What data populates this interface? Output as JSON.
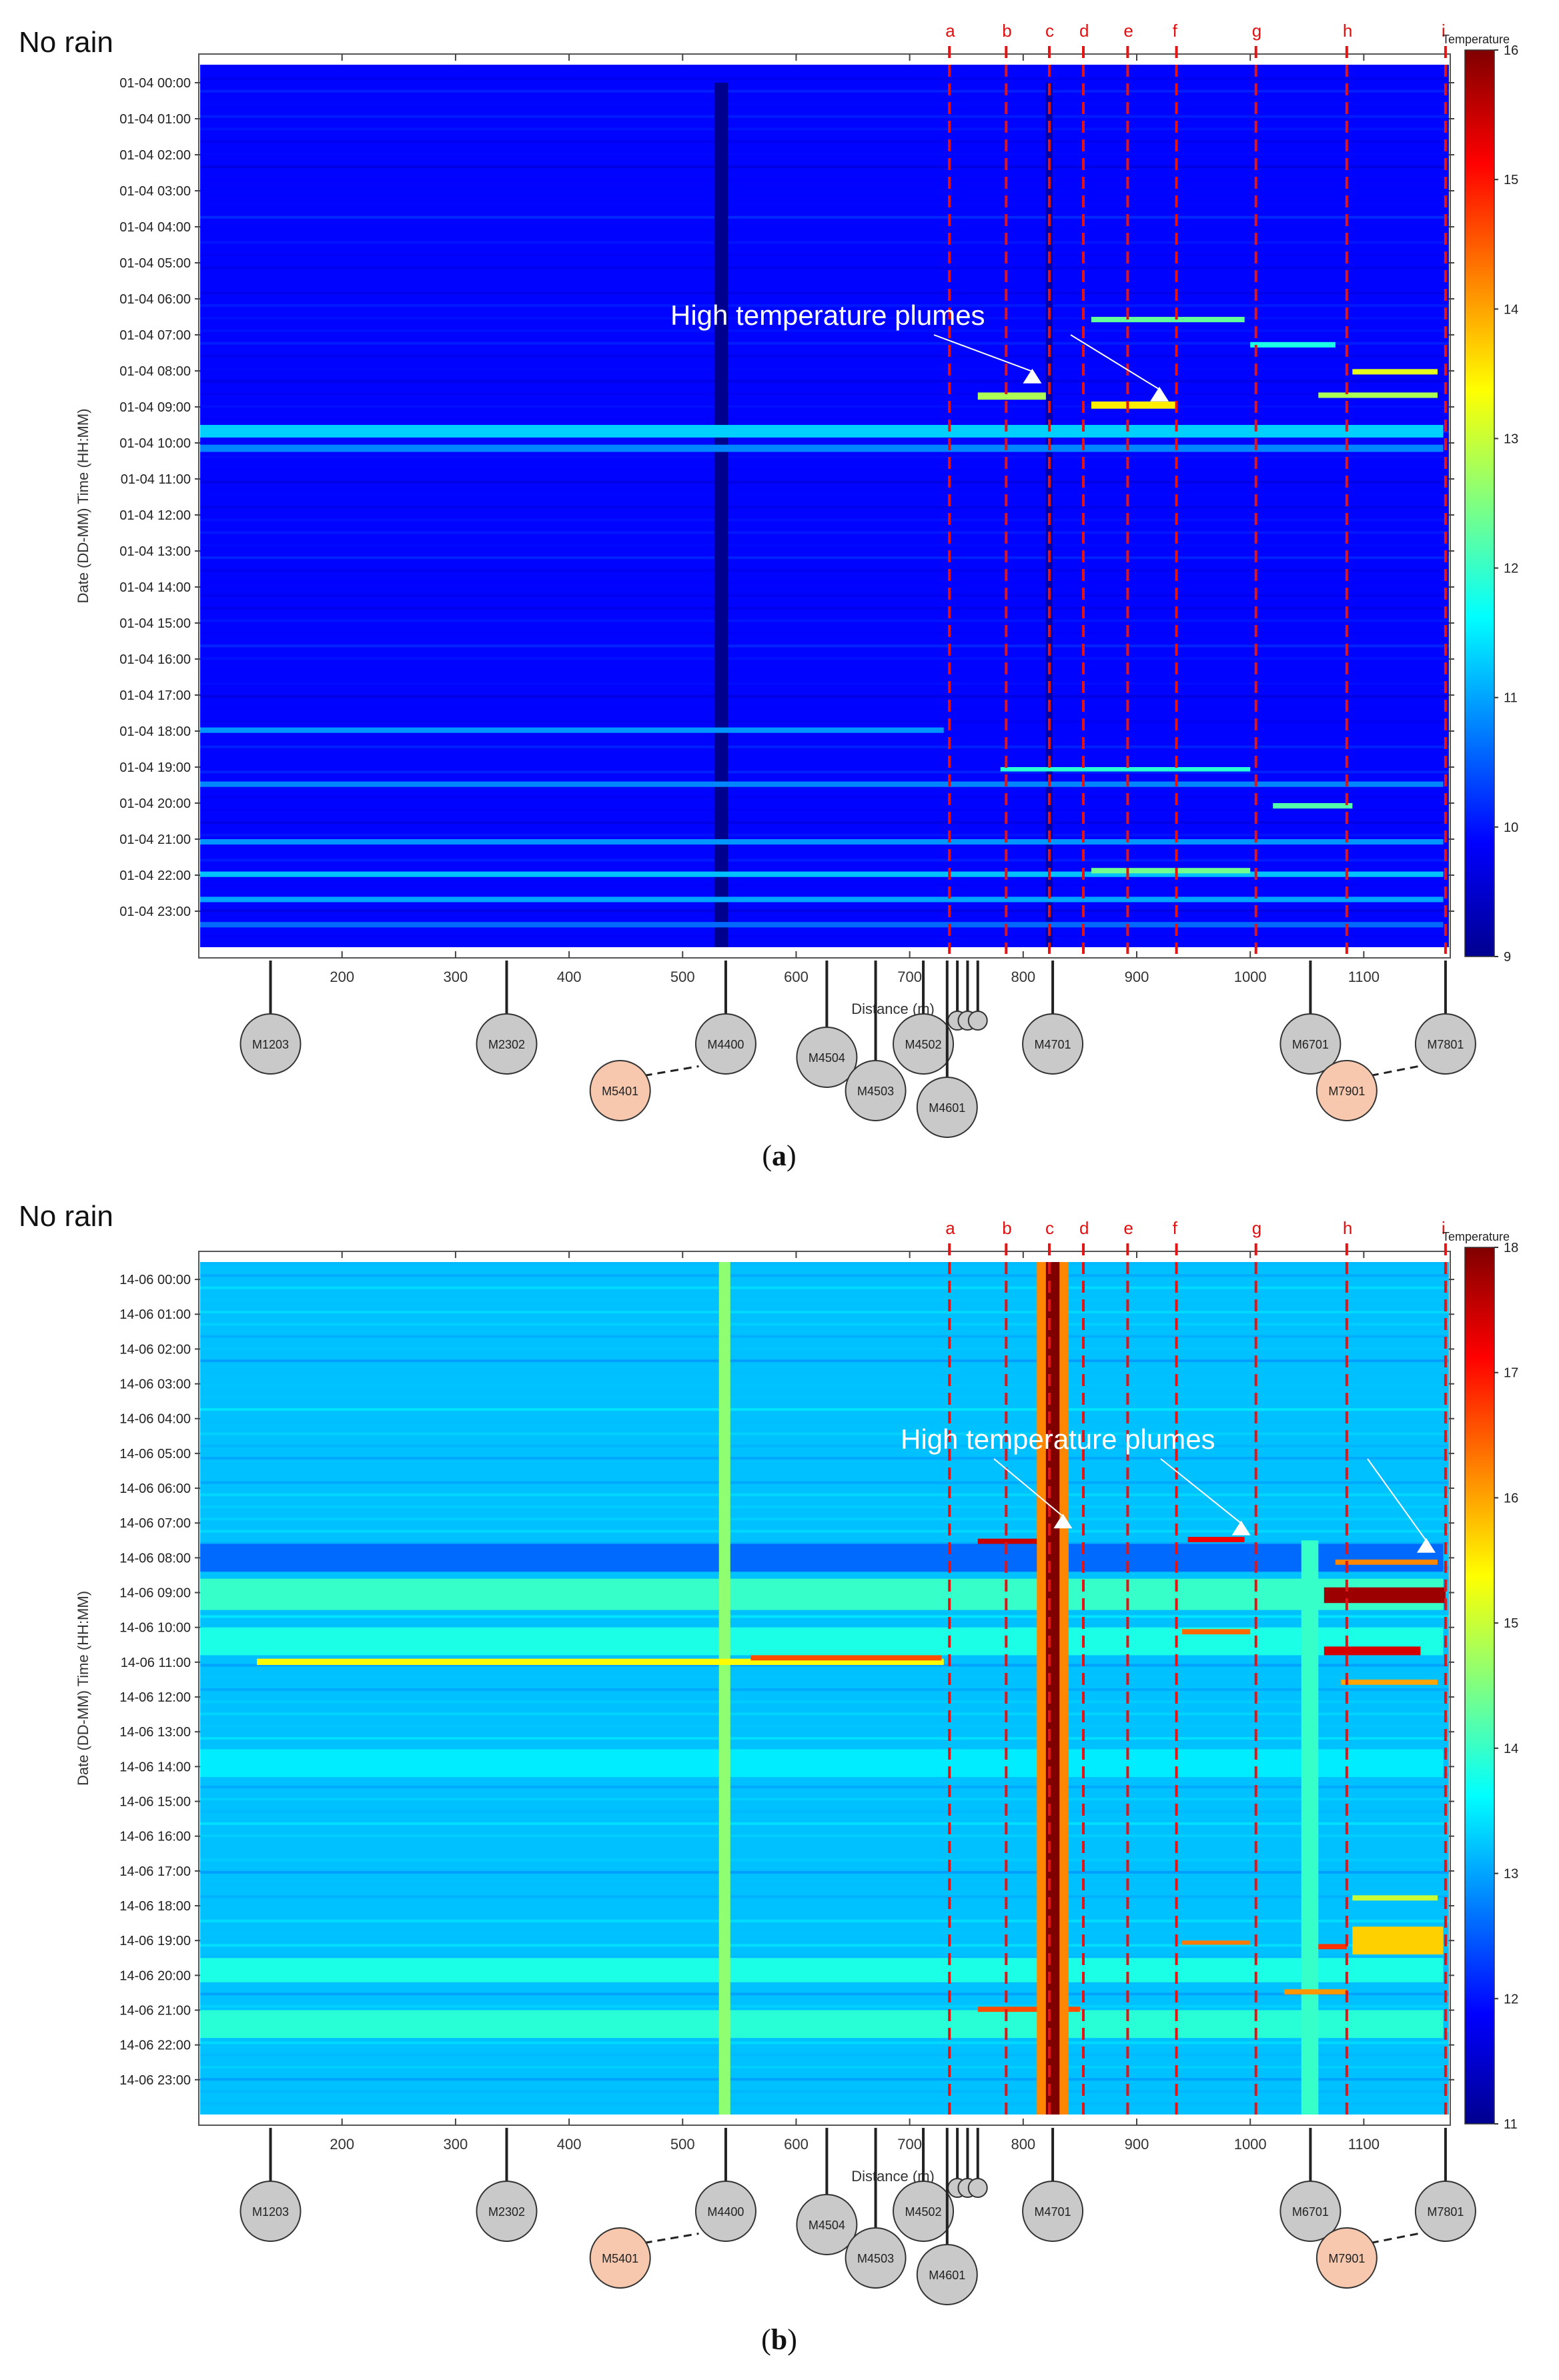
{
  "colors": {
    "manhole_grey": "#c9c9c9",
    "manhole_orange": "#f7c8ad",
    "dashed_line": "#e41414",
    "colormap": [
      "#00008f",
      "#0000ff",
      "#0080ff",
      "#00ffff",
      "#80ff80",
      "#ffff00",
      "#ff8000",
      "#ff0000",
      "#800000"
    ]
  },
  "chart_data": [
    {
      "type": "heatmap",
      "panel_title": "No rain",
      "caption_prefix": "(",
      "caption_letter": "a",
      "caption_suffix": ")",
      "xlabel": "Distance (m)",
      "ylabel": "Date (DD-MM) Time (HH:MM)",
      "xlim": [
        75,
        1175
      ],
      "x_ticks": [
        200,
        300,
        400,
        500,
        600,
        700,
        800,
        900,
        1000,
        1100
      ],
      "y_tick_labels": [
        "01-04 00:00",
        "01-04 01:00",
        "01-04 02:00",
        "01-04 03:00",
        "01-04 04:00",
        "01-04 05:00",
        "01-04 06:00",
        "01-04 07:00",
        "01-04 08:00",
        "01-04 09:00",
        "01-04 10:00",
        "01-04 11:00",
        "01-04 12:00",
        "01-04 13:00",
        "01-04 14:00",
        "01-04 15:00",
        "01-04 16:00",
        "01-04 17:00",
        "01-04 18:00",
        "01-04 19:00",
        "01-04 20:00",
        "01-04 21:00",
        "01-04 22:00",
        "01-04 23:00"
      ],
      "ylim_hours": [
        -0.5,
        24
      ],
      "colorbar": {
        "title": "Temperature",
        "min": 9,
        "max": 16,
        "ticks": [
          9,
          10,
          11,
          12,
          13,
          14,
          15,
          16
        ]
      },
      "background_temp": 9.9,
      "annotation": {
        "text": "High temperature plumes",
        "arrow_targets": [
          {
            "x": 808,
            "h": 8.2
          },
          {
            "x": 920,
            "h": 8.7
          }
        ]
      },
      "vertical_lines": [
        {
          "label": "a",
          "x": 735
        },
        {
          "label": "b",
          "x": 785
        },
        {
          "label": "c",
          "x": 823
        },
        {
          "label": "d",
          "x": 853
        },
        {
          "label": "e",
          "x": 892
        },
        {
          "label": "f",
          "x": 935
        },
        {
          "label": "g",
          "x": 1005
        },
        {
          "label": "h",
          "x": 1085
        },
        {
          "label": "i",
          "x": 1172
        }
      ],
      "features": [
        {
          "x0": 528,
          "x1": 540,
          "h0": 0,
          "h1": 24,
          "t": 9.0
        },
        {
          "x0": 820,
          "x1": 826,
          "h0": 0,
          "h1": 24,
          "t": 9.2
        },
        {
          "x0": 75,
          "x1": 1170,
          "h0": 9.5,
          "h1": 9.85,
          "t": 11.3
        },
        {
          "x0": 75,
          "x1": 1170,
          "h0": 10.05,
          "h1": 10.25,
          "t": 10.8
        },
        {
          "x0": 760,
          "x1": 820,
          "h0": 8.6,
          "h1": 8.8,
          "t": 12.8
        },
        {
          "x0": 860,
          "x1": 935,
          "h0": 8.85,
          "h1": 9.05,
          "t": 13.5
        },
        {
          "x0": 860,
          "x1": 995,
          "h0": 6.5,
          "h1": 6.65,
          "t": 12.3
        },
        {
          "x0": 1090,
          "x1": 1165,
          "h0": 7.95,
          "h1": 8.1,
          "t": 13.2
        },
        {
          "x0": 1060,
          "x1": 1165,
          "h0": 8.6,
          "h1": 8.75,
          "t": 12.8
        },
        {
          "x0": 1000,
          "x1": 1075,
          "h0": 7.2,
          "h1": 7.35,
          "t": 11.8
        },
        {
          "x0": 75,
          "x1": 730,
          "h0": 17.9,
          "h1": 18.05,
          "t": 10.9
        },
        {
          "x0": 75,
          "x1": 1170,
          "h0": 19.4,
          "h1": 19.55,
          "t": 10.8
        },
        {
          "x0": 780,
          "x1": 1000,
          "h0": 19.0,
          "h1": 19.12,
          "t": 11.9
        },
        {
          "x0": 1020,
          "x1": 1090,
          "h0": 20.0,
          "h1": 20.15,
          "t": 12.2
        },
        {
          "x0": 75,
          "x1": 1170,
          "h0": 21.0,
          "h1": 21.15,
          "t": 10.9
        },
        {
          "x0": 75,
          "x1": 1170,
          "h0": 21.9,
          "h1": 22.05,
          "t": 11.2
        },
        {
          "x0": 860,
          "x1": 1000,
          "h0": 21.8,
          "h1": 21.95,
          "t": 12.4
        },
        {
          "x0": 75,
          "x1": 1170,
          "h0": 22.6,
          "h1": 22.75,
          "t": 11.0
        },
        {
          "x0": 75,
          "x1": 1170,
          "h0": 23.3,
          "h1": 23.45,
          "t": 10.6
        }
      ],
      "manholes_row": [
        {
          "label": "M1203",
          "x": 137,
          "style": "grey",
          "tier": 0
        },
        {
          "label": "M2302",
          "x": 345,
          "style": "grey",
          "tier": 0
        },
        {
          "label": "M4400",
          "x": 538,
          "style": "grey",
          "tier": 0
        },
        {
          "label": "M4504",
          "x": 627,
          "style": "grey",
          "tier": 1
        },
        {
          "label": "M4503",
          "x": 670,
          "style": "grey",
          "tier": 2
        },
        {
          "label": "M4502",
          "x": 712,
          "style": "grey",
          "tier": 0
        },
        {
          "label": "M4601",
          "x": 733,
          "style": "grey",
          "tier": 3
        },
        {
          "label": "M4701",
          "x": 826,
          "style": "grey",
          "tier": 0
        },
        {
          "label": "M6701",
          "x": 1053,
          "style": "grey",
          "tier": 0
        },
        {
          "label": "M7801",
          "x": 1172,
          "style": "grey",
          "tier": 0
        }
      ],
      "manholes_offset": [
        {
          "label": "M5401",
          "x": 445,
          "link_to": 538
        },
        {
          "label": "M7901",
          "x": 1085,
          "link_to": 1172
        }
      ]
    },
    {
      "type": "heatmap",
      "panel_title": "No rain",
      "caption_prefix": "(",
      "caption_letter": "b",
      "caption_suffix": ")",
      "xlabel": "Distance (m)",
      "ylabel": "Date (DD-MM) Time (HH:MM)",
      "xlim": [
        75,
        1175
      ],
      "x_ticks": [
        200,
        300,
        400,
        500,
        600,
        700,
        800,
        900,
        1000,
        1100
      ],
      "y_tick_labels": [
        "14-06 00:00",
        "14-06 01:00",
        "14-06 02:00",
        "14-06 03:00",
        "14-06 04:00",
        "14-06 05:00",
        "14-06 06:00",
        "14-06 07:00",
        "14-06 08:00",
        "14-06 09:00",
        "14-06 10:00",
        "14-06 11:00",
        "14-06 12:00",
        "14-06 13:00",
        "14-06 14:00",
        "14-06 15:00",
        "14-06 16:00",
        "14-06 17:00",
        "14-06 18:00",
        "14-06 19:00",
        "14-06 20:00",
        "14-06 21:00",
        "14-06 22:00",
        "14-06 23:00"
      ],
      "ylim_hours": [
        -0.5,
        24
      ],
      "colorbar": {
        "title": "Temperature",
        "min": 11,
        "max": 18,
        "ticks": [
          11,
          12,
          13,
          14,
          15,
          16,
          17,
          18
        ]
      },
      "background_temp": 13.2,
      "annotation": {
        "text": "High temperature plumes",
        "arrow_targets": [
          {
            "x": 835,
            "h": 7.0
          },
          {
            "x": 992,
            "h": 7.2
          },
          {
            "x": 1155,
            "h": 7.7
          }
        ]
      },
      "vertical_lines": [
        {
          "label": "a",
          "x": 735
        },
        {
          "label": "b",
          "x": 785
        },
        {
          "label": "c",
          "x": 823
        },
        {
          "label": "d",
          "x": 853
        },
        {
          "label": "e",
          "x": 892
        },
        {
          "label": "f",
          "x": 935
        },
        {
          "label": "g",
          "x": 1005
        },
        {
          "label": "h",
          "x": 1085
        },
        {
          "label": "i",
          "x": 1172
        }
      ],
      "features": [
        {
          "x0": 75,
          "x1": 1170,
          "h0": 7.6,
          "h1": 8.4,
          "t": 12.6
        },
        {
          "x0": 75,
          "x1": 1170,
          "h0": 8.6,
          "h1": 9.5,
          "t": 14.0
        },
        {
          "x0": 75,
          "x1": 1170,
          "h0": 10.0,
          "h1": 10.8,
          "t": 13.8
        },
        {
          "x0": 75,
          "x1": 1170,
          "h0": 13.5,
          "h1": 14.3,
          "t": 13.5
        },
        {
          "x0": 75,
          "x1": 1170,
          "h0": 19.5,
          "h1": 20.2,
          "t": 13.8
        },
        {
          "x0": 75,
          "x1": 1170,
          "h0": 21.0,
          "h1": 21.8,
          "t": 13.9
        },
        {
          "x0": 532,
          "x1": 542,
          "h0": -0.5,
          "h1": 24,
          "t": 14.6
        },
        {
          "x0": 1045,
          "x1": 1060,
          "h0": 7.5,
          "h1": 24,
          "t": 14.0
        },
        {
          "x0": 125,
          "x1": 730,
          "h0": 10.9,
          "h1": 11.08,
          "t": 15.4
        },
        {
          "x0": 560,
          "x1": 728,
          "h0": 10.8,
          "h1": 10.95,
          "t": 16.6
        },
        {
          "x0": 760,
          "x1": 840,
          "h0": 7.45,
          "h1": 7.6,
          "t": 17.5
        },
        {
          "x0": 945,
          "x1": 995,
          "h0": 7.4,
          "h1": 7.55,
          "t": 17.2
        },
        {
          "x0": 1065,
          "x1": 1172,
          "h0": 8.85,
          "h1": 9.3,
          "t": 17.8
        },
        {
          "x0": 1075,
          "x1": 1165,
          "h0": 8.05,
          "h1": 8.2,
          "t": 16.2
        },
        {
          "x0": 1065,
          "x1": 1150,
          "h0": 10.55,
          "h1": 10.8,
          "t": 17.4
        },
        {
          "x0": 1080,
          "x1": 1165,
          "h0": 11.5,
          "h1": 11.65,
          "t": 16.0
        },
        {
          "x0": 940,
          "x1": 1000,
          "h0": 10.05,
          "h1": 10.2,
          "t": 16.4
        },
        {
          "x0": 760,
          "x1": 850,
          "h0": 20.9,
          "h1": 21.05,
          "t": 16.6
        },
        {
          "x0": 1030,
          "x1": 1085,
          "h0": 20.4,
          "h1": 20.55,
          "t": 16.1
        },
        {
          "x0": 1090,
          "x1": 1170,
          "h0": 18.6,
          "h1": 19.4,
          "t": 15.7
        },
        {
          "x0": 940,
          "x1": 1000,
          "h0": 19.0,
          "h1": 19.12,
          "t": 16.3
        },
        {
          "x0": 1060,
          "x1": 1085,
          "h0": 19.1,
          "h1": 19.25,
          "t": 16.8
        },
        {
          "x0": 1090,
          "x1": 1165,
          "h0": 17.7,
          "h1": 17.85,
          "t": 15.0
        }
      ],
      "hot_pipe": {
        "x0": 820,
        "x1": 832,
        "t": 18.0
      },
      "hot_pipe_halo": {
        "x0": 812,
        "x1": 840,
        "t": 16.2
      },
      "manholes_row": [
        {
          "label": "M1203",
          "x": 137,
          "style": "grey",
          "tier": 0
        },
        {
          "label": "M2302",
          "x": 345,
          "style": "grey",
          "tier": 0
        },
        {
          "label": "M4400",
          "x": 538,
          "style": "grey",
          "tier": 0
        },
        {
          "label": "M4504",
          "x": 627,
          "style": "grey",
          "tier": 1
        },
        {
          "label": "M4503",
          "x": 670,
          "style": "grey",
          "tier": 2
        },
        {
          "label": "M4502",
          "x": 712,
          "style": "grey",
          "tier": 0
        },
        {
          "label": "M4601",
          "x": 733,
          "style": "grey",
          "tier": 3
        },
        {
          "label": "M4701",
          "x": 826,
          "style": "grey",
          "tier": 0
        },
        {
          "label": "M6701",
          "x": 1053,
          "style": "grey",
          "tier": 0
        },
        {
          "label": "M7801",
          "x": 1172,
          "style": "grey",
          "tier": 0
        }
      ],
      "manholes_offset": [
        {
          "label": "M5401",
          "x": 445,
          "link_to": 538
        },
        {
          "label": "M7901",
          "x": 1085,
          "link_to": 1172
        }
      ]
    }
  ]
}
